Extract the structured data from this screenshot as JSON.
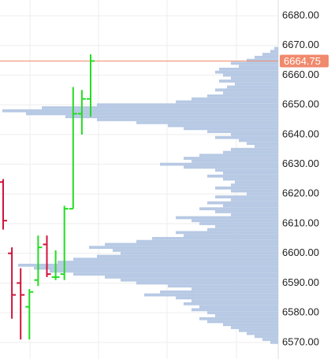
{
  "chart_data": {
    "type": "ohlc",
    "ylim": [
      6564.4,
      6685.3
    ],
    "yticks": [
      {
        "value": 6570,
        "label": "6570.00"
      },
      {
        "value": 6580,
        "label": "6580.00"
      },
      {
        "value": 6590,
        "label": "6590.00"
      },
      {
        "value": 6600,
        "label": "6600.00"
      },
      {
        "value": 6610,
        "label": "6610.00"
      },
      {
        "value": 6620,
        "label": "6620.00"
      },
      {
        "value": 6630,
        "label": "6630.00"
      },
      {
        "value": 6640,
        "label": "6640.00"
      },
      {
        "value": 6650,
        "label": "6650.00"
      },
      {
        "value": 6660,
        "label": "6660.00"
      },
      {
        "value": 6670,
        "label": "6670.00"
      },
      {
        "value": 6680,
        "label": "6680.00"
      }
    ],
    "grid": true,
    "up_color": "#22dd22",
    "down_color": "#d0143c",
    "open": [
      6624,
      6600,
      6590,
      6582,
      6591,
      6603,
      6592,
      6593,
      6615,
      6647,
      6652
    ],
    "high": [
      6625,
      6602,
      6595,
      6588,
      6606,
      6606,
      6601,
      6616,
      6656,
      6655,
      6667
    ],
    "low": [
      6608,
      6578,
      6571,
      6571,
      6589,
      6592,
      6591,
      6591,
      6615,
      6640,
      6646
    ],
    "close": [
      6611,
      6586,
      6586,
      6587,
      6602,
      6593,
      6592,
      6615,
      6647,
      6652,
      6664.75
    ],
    "last_price": 6664.75,
    "last_price_color": "#f08a6c",
    "profile_color": "#b7c9e4",
    "profile": {
      "prices": [
        6570,
        6571,
        6572,
        6573,
        6574,
        6575,
        6576,
        6577,
        6578,
        6579,
        6580,
        6581,
        6582,
        6583,
        6584,
        6585,
        6586,
        6587,
        6588,
        6589,
        6590,
        6591,
        6592,
        6593,
        6594,
        6595,
        6596,
        6597,
        6598,
        6599,
        6600,
        6601,
        6602,
        6603,
        6604,
        6605,
        6606,
        6607,
        6608,
        6609,
        6610,
        6611,
        6612,
        6613,
        6614,
        6615,
        6616,
        6617,
        6618,
        6619,
        6620,
        6621,
        6622,
        6623,
        6624,
        6625,
        6626,
        6627,
        6628,
        6629,
        6630,
        6631,
        6632,
        6633,
        6634,
        6635,
        6636,
        6637,
        6638,
        6639,
        6640,
        6641,
        6642,
        6643,
        6644,
        6645,
        6646,
        6647,
        6648,
        6649,
        6650,
        6651,
        6652,
        6653,
        6654,
        6655,
        6656,
        6657,
        6658,
        6659,
        6660,
        6661,
        6662,
        6663,
        6664,
        6665,
        6666,
        6667,
        6668,
        6669
      ],
      "volumes": [
        10,
        20,
        30,
        40,
        50,
        60,
        70,
        90,
        100,
        80,
        90,
        110,
        100,
        120,
        110,
        130,
        170,
        150,
        110,
        140,
        180,
        200,
        220,
        260,
        290,
        310,
        330,
        280,
        260,
        230,
        200,
        210,
        240,
        220,
        180,
        160,
        120,
        130,
        90,
        80,
        100,
        110,
        130,
        60,
        80,
        100,
        70,
        90,
        60,
        80,
        40,
        60,
        80,
        60,
        55,
        70,
        90,
        70,
        80,
        120,
        150,
        110,
        120,
        100,
        70,
        60,
        30,
        40,
        50,
        80,
        60,
        90,
        120,
        140,
        180,
        230,
        270,
        320,
        350,
        300,
        230,
        130,
        110,
        90,
        70,
        80,
        65,
        55,
        75,
        60,
        70,
        80,
        75,
        50,
        60,
        40,
        30,
        20,
        10,
        5
      ]
    }
  }
}
